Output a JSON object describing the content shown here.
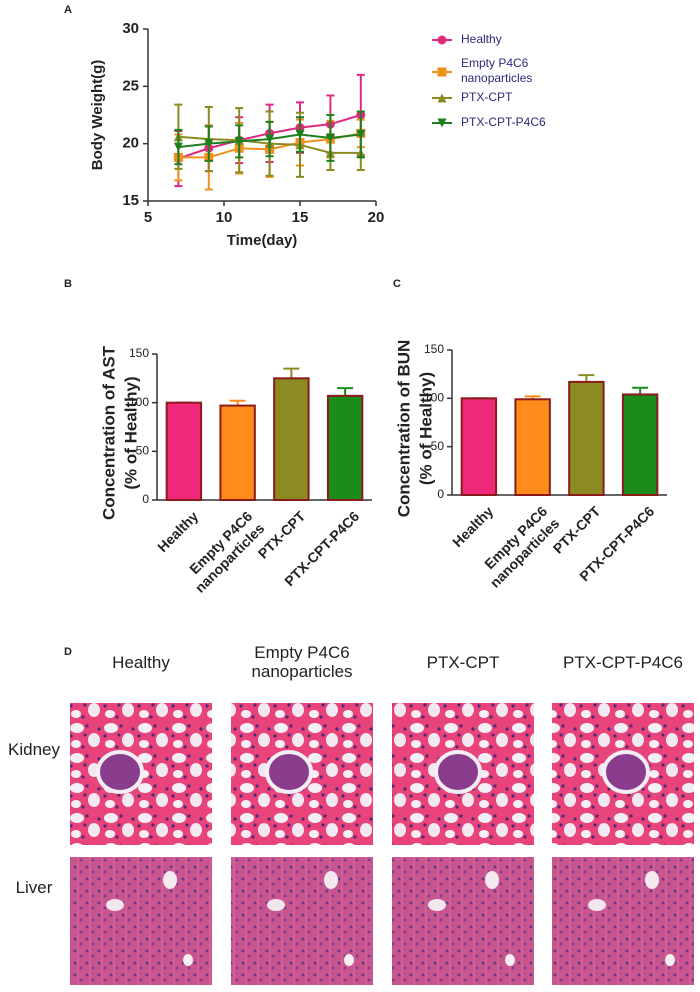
{
  "chart_data": [
    {
      "type": "line",
      "panel_label": "A",
      "x_label": "Time(day)",
      "y_label": "Body Weight(g)",
      "x": [
        7,
        9,
        11,
        13,
        15,
        17,
        19
      ],
      "xlim": [
        5,
        20
      ],
      "xticks": [
        5,
        10,
        15,
        20
      ],
      "ylim": [
        15,
        30
      ],
      "yticks": [
        15,
        20,
        25,
        30
      ],
      "legend": "right",
      "series": [
        {
          "name": "Healthy",
          "color": "#e0287f",
          "marker": "circle",
          "values": [
            18.7,
            19.6,
            20.3,
            20.9,
            21.4,
            21.7,
            22.5
          ],
          "errors": [
            2.4,
            2.0,
            2.0,
            2.5,
            2.2,
            2.5,
            3.5
          ]
        },
        {
          "name": "Empty P4C6 nanoparticles",
          "color": "#f2901e",
          "marker": "square",
          "values": [
            18.8,
            18.8,
            19.6,
            19.5,
            20.1,
            20.4,
            20.9
          ],
          "errors": [
            2.0,
            2.8,
            2.2,
            2.4,
            2.0,
            1.6,
            1.2
          ]
        },
        {
          "name": "PTX-CPT",
          "color": "#8a8a1e",
          "marker": "triangle-up",
          "values": [
            20.6,
            20.4,
            20.3,
            20.0,
            19.9,
            19.2,
            19.2
          ],
          "errors": [
            2.8,
            2.8,
            2.8,
            2.8,
            2.8,
            1.5,
            1.5
          ]
        },
        {
          "name": "PTX-CPT-P4C6",
          "color": "#1e7f1e",
          "marker": "triangle-down",
          "values": [
            19.7,
            20.0,
            20.2,
            20.4,
            20.8,
            20.5,
            20.8
          ],
          "errors": [
            1.5,
            1.5,
            1.4,
            1.5,
            1.5,
            2.0,
            2.0
          ]
        }
      ]
    },
    {
      "type": "bar",
      "panel_label": "B",
      "y_label": [
        "Concentration of AST",
        "(% of Healthy)"
      ],
      "categories": [
        "Healthy",
        "Empty P4C6 nanoparticles",
        "PTX-CPT",
        "PTX-CPT-P4C6"
      ],
      "values": [
        100,
        97,
        125,
        107
      ],
      "errors": [
        0,
        5,
        10,
        8
      ],
      "colors": [
        "#f0287a",
        "#ff8c1a",
        "#8b8b22",
        "#1a8c1a"
      ],
      "edge_color": "#8b1a1a",
      "ylim": [
        0,
        150
      ],
      "yticks": [
        0,
        50,
        100,
        150
      ]
    },
    {
      "type": "bar",
      "panel_label": "C",
      "y_label": [
        "Concentration of BUN",
        "(% of Healthy)"
      ],
      "categories": [
        "Healthy",
        "Empty P4C6 nanoparticles",
        "PTX-CPT",
        "PTX-CPT-P4C6"
      ],
      "values": [
        100,
        99,
        117,
        104
      ],
      "errors": [
        0,
        3,
        7,
        7
      ],
      "colors": [
        "#f0287a",
        "#ff8c1a",
        "#8b8b22",
        "#1a8c1a"
      ],
      "edge_color": "#8b1a1a",
      "ylim": [
        0,
        150
      ],
      "yticks": [
        0,
        50,
        100,
        150
      ]
    }
  ],
  "panel_d": {
    "label": "D",
    "columns": [
      "Healthy",
      "Empty P4C6 nanoparticles",
      "PTX-CPT",
      "PTX-CPT-P4C6"
    ],
    "rows": [
      "Kidney",
      "Liver"
    ]
  }
}
